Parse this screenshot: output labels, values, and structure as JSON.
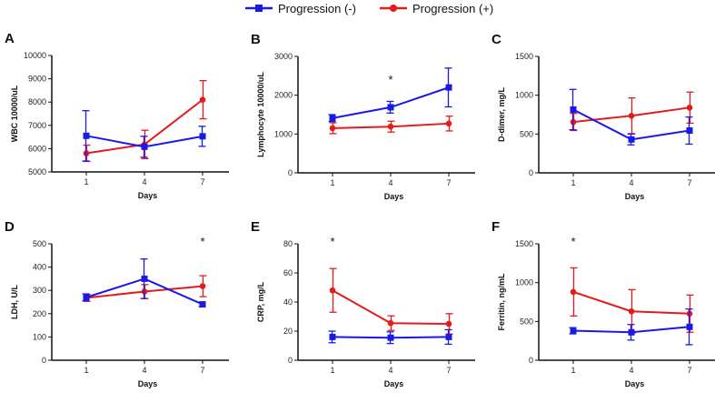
{
  "legend": [
    {
      "label": "Progression (-)",
      "color": "#1a1ae6"
    },
    {
      "label": "Progression (+)",
      "color": "#e61a1a"
    }
  ],
  "chart_data": [
    {
      "type": "line",
      "panel": "A",
      "ylabel": "WBC 10000/uL",
      "xlabel": "Days",
      "categories": [
        "1",
        "4",
        "7"
      ],
      "ylim": [
        5000,
        10000
      ],
      "yticks": [
        5000,
        6000,
        7000,
        8000,
        9000,
        10000
      ],
      "significance": [],
      "series": [
        {
          "name": "Progression (-)",
          "values": [
            6550,
            6080,
            6530
          ],
          "err": [
            1080,
            450,
            430
          ]
        },
        {
          "name": "Progression (+)",
          "values": [
            5800,
            6180,
            8100
          ],
          "err": [
            350,
            610,
            820
          ]
        }
      ]
    },
    {
      "type": "line",
      "panel": "B",
      "ylabel": "Lymphocyte 10000/uL",
      "xlabel": "Days",
      "categories": [
        "1",
        "4",
        "7"
      ],
      "ylim": [
        0,
        3000
      ],
      "yticks": [
        0,
        1000,
        2000,
        3000
      ],
      "significance": [
        "4"
      ],
      "series": [
        {
          "name": "Progression (-)",
          "values": [
            1410,
            1690,
            2200
          ],
          "err": [
            90,
            150,
            500
          ]
        },
        {
          "name": "Progression (+)",
          "values": [
            1150,
            1190,
            1270
          ],
          "err": [
            140,
            140,
            190
          ]
        }
      ]
    },
    {
      "type": "line",
      "panel": "C",
      "ylabel": "D-dimer, mg/L",
      "xlabel": "Days",
      "categories": [
        "1",
        "4",
        "7"
      ],
      "ylim": [
        0,
        1500
      ],
      "yticks": [
        0,
        500,
        1000,
        1500
      ],
      "significance": [],
      "series": [
        {
          "name": "Progression (-)",
          "values": [
            815,
            430,
            545
          ],
          "err": [
            260,
            70,
            175
          ]
        },
        {
          "name": "Progression (+)",
          "values": [
            655,
            735,
            840
          ],
          "err": [
            110,
            230,
            200
          ]
        }
      ]
    },
    {
      "type": "line",
      "panel": "D",
      "ylabel": "LDH, U/L",
      "xlabel": "Days",
      "categories": [
        "1",
        "4",
        "7"
      ],
      "ylim": [
        0,
        500
      ],
      "yticks": [
        0,
        100,
        200,
        300,
        400,
        500
      ],
      "significance": [
        "7"
      ],
      "series": [
        {
          "name": "Progression (-)",
          "values": [
            270,
            350,
            240
          ],
          "err": [
            15,
            85,
            10
          ]
        },
        {
          "name": "Progression (+)",
          "values": [
            268,
            295,
            318
          ],
          "err": [
            15,
            30,
            45
          ]
        }
      ]
    },
    {
      "type": "line",
      "panel": "E",
      "ylabel": "CRP, mg/L",
      "xlabel": "Days",
      "categories": [
        "1",
        "4",
        "7"
      ],
      "ylim": [
        0,
        80
      ],
      "yticks": [
        0,
        20,
        40,
        60,
        80
      ],
      "significance": [
        "1"
      ],
      "series": [
        {
          "name": "Progression (-)",
          "values": [
            16,
            15.5,
            16
          ],
          "err": [
            4,
            4,
            5
          ]
        },
        {
          "name": "Progression (+)",
          "values": [
            48,
            25.5,
            25
          ],
          "err": [
            15,
            5,
            7
          ]
        }
      ]
    },
    {
      "type": "line",
      "panel": "F",
      "ylabel": "Ferritin, ng/mL",
      "xlabel": "Days",
      "categories": [
        "1",
        "4",
        "7"
      ],
      "ylim": [
        0,
        1500
      ],
      "yticks": [
        0,
        500,
        1000,
        1500
      ],
      "significance": [
        "1"
      ],
      "series": [
        {
          "name": "Progression (-)",
          "values": [
            380,
            360,
            430
          ],
          "err": [
            40,
            100,
            230
          ]
        },
        {
          "name": "Progression (+)",
          "values": [
            880,
            630,
            600
          ],
          "err": [
            310,
            280,
            240
          ]
        }
      ]
    }
  ]
}
